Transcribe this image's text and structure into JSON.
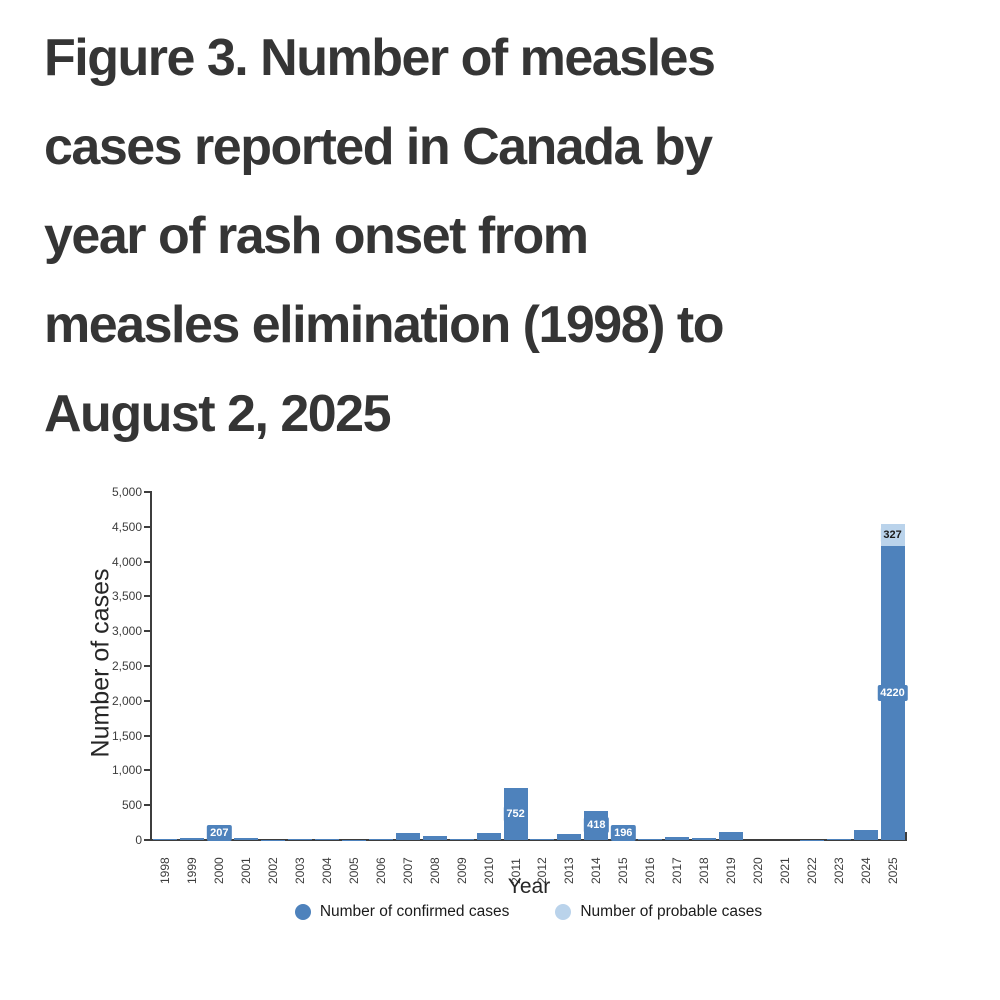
{
  "title": "Figure 3. Number of measles cases reported in Canada by year of rash onset from measles elimination (1998) to August 2, 2025",
  "title_lines": [
    "Figure 3. Number of measles",
    "cases reported in Canada by",
    "year of rash onset from",
    "measles elimination (1998) to",
    "August 2, 2025"
  ],
  "chart": {
    "y_axis_title": "Number of cases",
    "x_axis_title": "Year",
    "y_tick_labels": [
      "0",
      "500",
      "1,000",
      "1,500",
      "2,000",
      "2,500",
      "3,000",
      "3,500",
      "4,000",
      "4,500",
      "5,000"
    ],
    "legend": [
      {
        "label": "Number of confirmed cases",
        "color": "#4e82bc"
      },
      {
        "label": "Number of probable cases",
        "color": "#bad3eb"
      }
    ]
  },
  "chart_data": {
    "type": "bar",
    "stacked": true,
    "title": "",
    "xlabel": "Year",
    "ylabel": "Number of cases",
    "ylim": [
      0,
      5000
    ],
    "ytick_step": 500,
    "grid": false,
    "legend_position": "bottom",
    "categories": [
      "1998",
      "1999",
      "2000",
      "2001",
      "2002",
      "2003",
      "2004",
      "2005",
      "2006",
      "2007",
      "2008",
      "2009",
      "2010",
      "2011",
      "2012",
      "2013",
      "2014",
      "2015",
      "2016",
      "2017",
      "2018",
      "2019",
      "2020",
      "2021",
      "2022",
      "2023",
      "2024",
      "2025"
    ],
    "series": [
      {
        "name": "Number of confirmed cases",
        "color": "#4e82bc",
        "values": [
          12,
          30,
          207,
          33,
          7,
          16,
          8,
          6,
          13,
          101,
          62,
          14,
          99,
          752,
          10,
          83,
          418,
          196,
          11,
          45,
          29,
          113,
          1,
          0,
          3,
          12,
          146,
          4220
        ]
      },
      {
        "name": "Number of probable cases",
        "color": "#bad3eb",
        "values": [
          0,
          0,
          0,
          0,
          0,
          0,
          0,
          0,
          0,
          0,
          0,
          0,
          0,
          0,
          0,
          0,
          0,
          0,
          0,
          0,
          0,
          0,
          0,
          0,
          0,
          0,
          0,
          327
        ]
      }
    ],
    "data_labels": [
      {
        "category": "2000",
        "series": 0,
        "text": "207"
      },
      {
        "category": "2011",
        "series": 0,
        "text": "752"
      },
      {
        "category": "2014",
        "series": 0,
        "text": "418"
      },
      {
        "category": "2015",
        "series": 0,
        "text": "196"
      },
      {
        "category": "2025",
        "series": 0,
        "text": "4220"
      },
      {
        "category": "2025",
        "series": 1,
        "text": "327"
      }
    ],
    "label_text_colors": {
      "confirmed": "#ffffff",
      "probable": "#1a1a1a"
    }
  },
  "colors": {
    "title_text": "#353535",
    "axis_line": "#3d3d3d",
    "tick_text": "#3d3d3d",
    "confirmed": "#4e82bc",
    "probable": "#bad3eb"
  }
}
